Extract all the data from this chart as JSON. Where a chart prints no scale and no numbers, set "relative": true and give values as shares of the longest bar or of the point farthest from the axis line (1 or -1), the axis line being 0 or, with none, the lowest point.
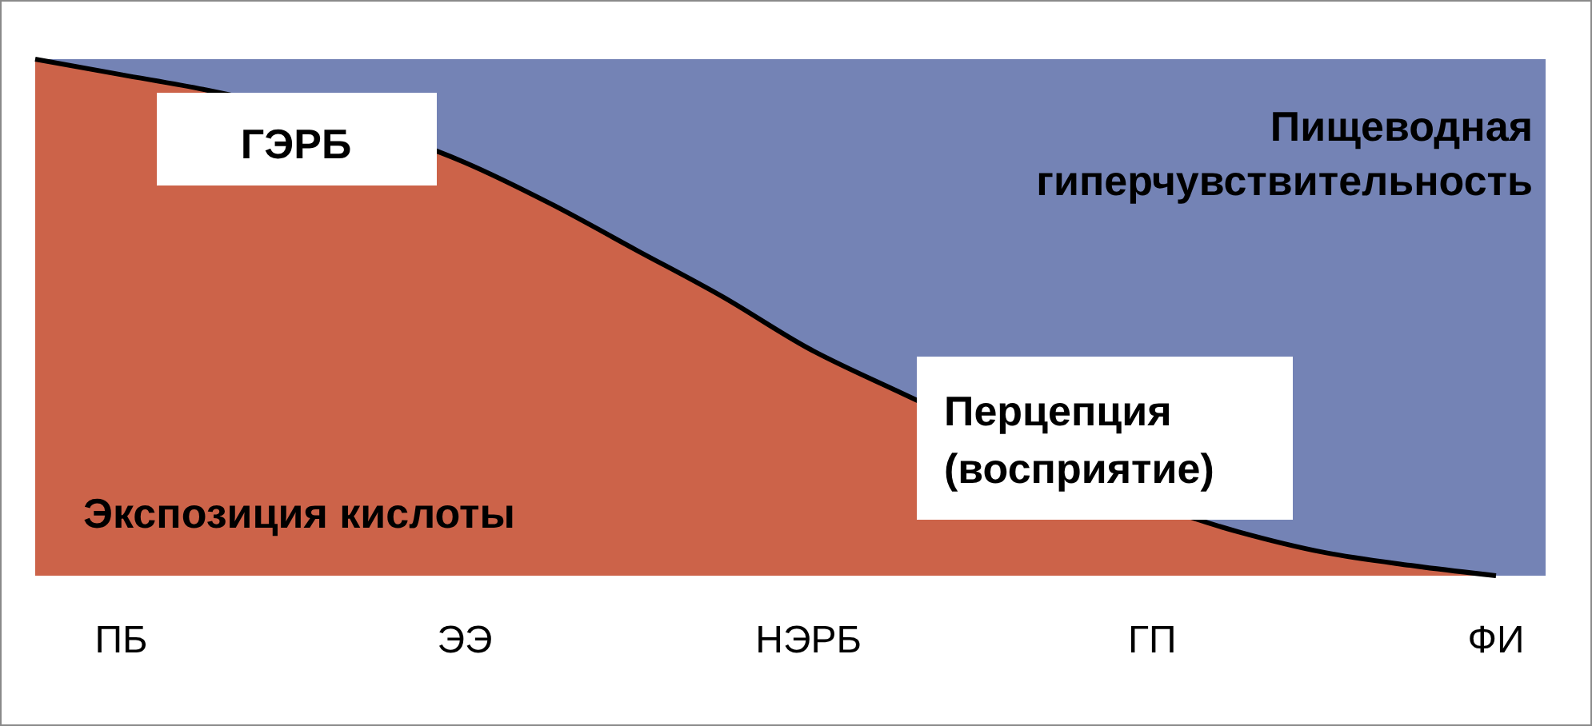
{
  "chart_data": {
    "type": "area",
    "relative": true,
    "categories": [
      null,
      "ПБ",
      null,
      null,
      null,
      "ЭЭ",
      null,
      null,
      null,
      "НЭРБ",
      null,
      null,
      null,
      "ГП",
      null,
      null,
      null,
      "ФИ"
    ],
    "series": [
      {
        "name": "Экспозиция кислоты",
        "color": "#cc6349",
        "values": [
          1,
          0.97,
          0.94,
          null,
          null,
          0.8,
          0.72,
          0.63,
          0.54,
          0.44,
          0.36,
          null,
          null,
          null,
          0.085,
          0.045,
          0.02,
          0
        ]
      }
    ],
    "bands": [
      {
        "axis": "y",
        "from": 0,
        "to": 1,
        "label": "Пищеводная\nгиперчувствительность",
        "color": "#7483b5"
      }
    ],
    "annotations": [
      "ГЭРБ",
      "Перцепция\n(восприятие)"
    ]
  }
}
